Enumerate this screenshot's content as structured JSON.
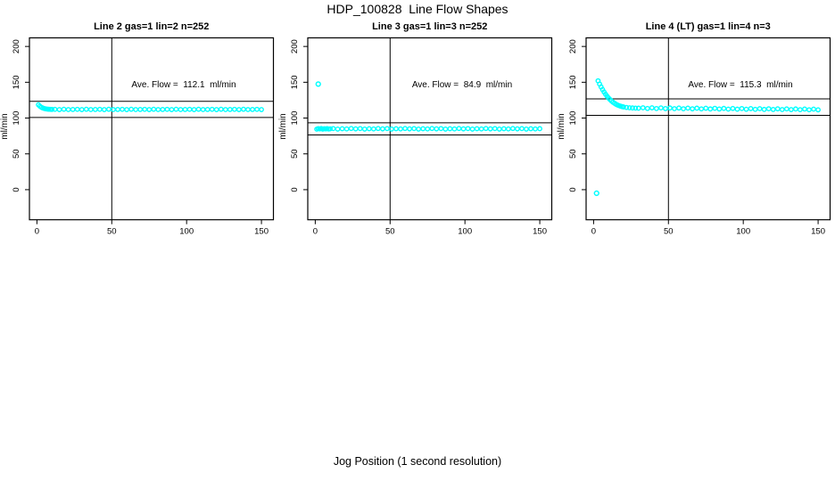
{
  "page": {
    "title": "HDP_100828  Line Flow Shapes",
    "xlabel": "Jog Position (1 second resolution)"
  },
  "colors": {
    "marker": "#00FFFF",
    "axis": "#000000",
    "background": "#FFFFFF"
  },
  "chart_data": [
    {
      "type": "scatter",
      "title": "Line 2 gas=1 lin=2 n=252",
      "ylabel": "ml/min",
      "annotation": "Ave. Flow =  112.1  ml/min",
      "ave_flow": 112.1,
      "marker_color": "#00FFFF",
      "xticks": [
        0,
        50,
        100,
        150
      ],
      "yticks": [
        0,
        50,
        100,
        150,
        200
      ],
      "xlim": [
        -5,
        158
      ],
      "ylim": [
        -42,
        212
      ],
      "vline": 50,
      "hline_upper": 123.3,
      "hline_lower": 100.9,
      "grid": false,
      "points": {
        "x": [
          1,
          2,
          3,
          4,
          5,
          6,
          7,
          8,
          9,
          10,
          12,
          15,
          18,
          21,
          24,
          27,
          30,
          33,
          36,
          39,
          42,
          45,
          48,
          51,
          54,
          57,
          60,
          63,
          66,
          69,
          72,
          75,
          78,
          81,
          84,
          87,
          90,
          93,
          96,
          99,
          102,
          105,
          108,
          111,
          114,
          117,
          120,
          123,
          126,
          129,
          132,
          135,
          138,
          141,
          144,
          147,
          150
        ],
        "y": [
          118.5,
          116.5,
          115.0,
          114.0,
          113.3,
          112.8,
          112.5,
          112.3,
          112.2,
          112.1,
          112.2,
          111.8,
          112.3,
          111.9,
          112.0,
          112.2,
          111.8,
          112.3,
          111.9,
          112.0,
          112.2,
          111.8,
          112.3,
          111.9,
          112.0,
          112.2,
          111.8,
          112.3,
          111.9,
          112.0,
          112.2,
          111.8,
          112.3,
          111.9,
          112.0,
          112.2,
          111.8,
          112.3,
          111.9,
          112.0,
          112.2,
          111.8,
          112.3,
          111.9,
          112.0,
          112.2,
          111.8,
          112.3,
          111.9,
          112.0,
          112.2,
          111.8,
          112.3,
          111.9,
          112.0,
          112.2,
          111.8
        ]
      },
      "outliers": []
    },
    {
      "type": "scatter",
      "title": "Line 3 gas=1 lin=3 n=252",
      "ylabel": "ml/min",
      "annotation": "Ave. Flow =  84.9  ml/min",
      "ave_flow": 84.9,
      "marker_color": "#00FFFF",
      "xticks": [
        0,
        50,
        100,
        150
      ],
      "yticks": [
        0,
        50,
        100,
        150,
        200
      ],
      "xlim": [
        -5,
        158
      ],
      "ylim": [
        -42,
        212
      ],
      "vline": 50,
      "hline_upper": 93.4,
      "hline_lower": 76.4,
      "grid": false,
      "points": {
        "x": [
          1,
          2,
          3,
          4,
          5,
          6,
          7,
          8,
          9,
          10,
          12,
          15,
          18,
          21,
          24,
          27,
          30,
          33,
          36,
          39,
          42,
          45,
          48,
          51,
          54,
          57,
          60,
          63,
          66,
          69,
          72,
          75,
          78,
          81,
          84,
          87,
          90,
          93,
          96,
          99,
          102,
          105,
          108,
          111,
          114,
          117,
          120,
          123,
          126,
          129,
          132,
          135,
          138,
          141,
          144,
          147,
          150
        ],
        "y": [
          84.5,
          85.3,
          84.8,
          85.4,
          84.6,
          85.1,
          84.9,
          85.2,
          84.7,
          85.0,
          85.3,
          84.6,
          85.1,
          84.8,
          85.4,
          84.9,
          85.3,
          84.6,
          85.1,
          84.8,
          85.4,
          84.9,
          85.3,
          84.6,
          85.1,
          84.8,
          85.4,
          84.9,
          85.3,
          84.6,
          85.1,
          84.8,
          85.4,
          84.9,
          85.3,
          84.6,
          85.1,
          84.8,
          85.4,
          84.9,
          85.3,
          84.6,
          85.1,
          84.8,
          85.4,
          84.9,
          85.3,
          84.6,
          85.1,
          84.8,
          85.4,
          84.9,
          85.3,
          84.6,
          85.1,
          84.8,
          85.2
        ]
      },
      "outliers": [
        [
          2,
          147.5
        ]
      ]
    },
    {
      "type": "scatter",
      "title": "Line 4 (LT) gas=1 lin=4 n=3",
      "ylabel": "ml/min",
      "annotation": "Ave. Flow =  115.3  ml/min",
      "ave_flow": 115.3,
      "marker_color": "#00FFFF",
      "xticks": [
        0,
        50,
        100,
        150
      ],
      "yticks": [
        0,
        50,
        100,
        150,
        200
      ],
      "xlim": [
        -5,
        158
      ],
      "ylim": [
        -42,
        212
      ],
      "vline": 50,
      "hline_upper": 126.8,
      "hline_lower": 103.8,
      "grid": false,
      "points": {
        "x": [
          3,
          4,
          5,
          6,
          7,
          8,
          9,
          10,
          11,
          12,
          13,
          14,
          15,
          16,
          17,
          18,
          19,
          20,
          22,
          24,
          26,
          28,
          30,
          33,
          36,
          39,
          42,
          45,
          48,
          51,
          54,
          57,
          60,
          63,
          66,
          69,
          72,
          75,
          78,
          81,
          84,
          87,
          90,
          93,
          96,
          99,
          102,
          105,
          108,
          111,
          114,
          117,
          120,
          123,
          126,
          129,
          132,
          135,
          138,
          141,
          144,
          147,
          150
        ],
        "y": [
          152.0,
          147.5,
          143.5,
          139.8,
          136.4,
          133.3,
          130.5,
          128.0,
          125.8,
          123.8,
          122.1,
          120.6,
          119.3,
          118.2,
          117.3,
          116.6,
          116.0,
          115.5,
          114.8,
          114.4,
          114.1,
          113.9,
          113.8,
          114.4,
          113.4,
          114.3,
          113.3,
          114.2,
          113.2,
          114.1,
          113.1,
          114.0,
          113.0,
          113.9,
          112.9,
          113.8,
          112.8,
          113.7,
          112.7,
          113.6,
          112.6,
          113.5,
          112.5,
          113.4,
          112.4,
          113.3,
          112.3,
          113.2,
          112.2,
          113.1,
          112.1,
          113.0,
          112.0,
          112.9,
          111.9,
          112.8,
          111.8,
          112.7,
          111.7,
          112.6,
          111.6,
          112.5,
          111.5
        ]
      },
      "outliers": [
        [
          2,
          -5
        ]
      ]
    }
  ]
}
